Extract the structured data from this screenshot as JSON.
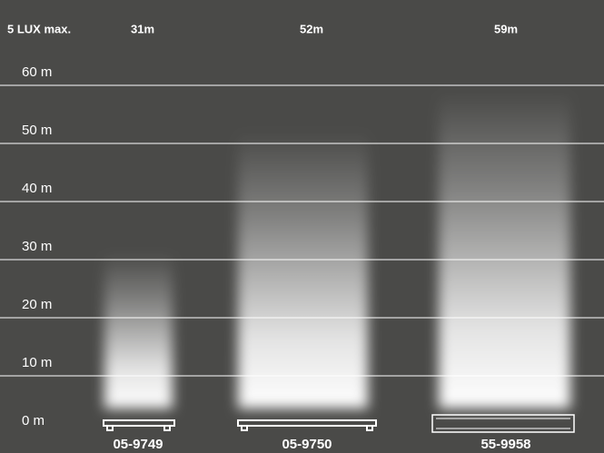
{
  "chart_data": {
    "type": "bar",
    "title": "5 LUX max.",
    "categories": [
      "05-9749",
      "05-9750",
      "55-9958"
    ],
    "values": [
      31,
      52,
      59
    ],
    "value_labels": [
      "31m",
      "52m",
      "59m"
    ],
    "color": "#ffffff",
    "ylim": [
      0,
      60
    ],
    "yticks": [
      {
        "value": 0,
        "label": "0 m"
      },
      {
        "value": 10,
        "label": "10 m"
      },
      {
        "value": 20,
        "label": "20 m"
      },
      {
        "value": 30,
        "label": "30 m"
      },
      {
        "value": 40,
        "label": "40 m"
      },
      {
        "value": 50,
        "label": "50 m"
      },
      {
        "value": 60,
        "label": "60 m"
      }
    ],
    "grid": true
  }
}
